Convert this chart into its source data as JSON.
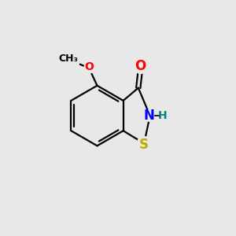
{
  "background_color": "#e8e8e8",
  "bond_color": "#000000",
  "bond_width": 1.6,
  "atom_colors": {
    "O": "#ff0000",
    "N": "#0000ff",
    "S": "#bbaa00",
    "H": "#008888",
    "C": "#000000"
  },
  "font_size_large": 12,
  "font_size_small": 10,
  "figure_size": [
    3.0,
    3.0
  ],
  "dpi": 100,
  "xlim": [
    0,
    10
  ],
  "ylim": [
    0,
    10
  ]
}
